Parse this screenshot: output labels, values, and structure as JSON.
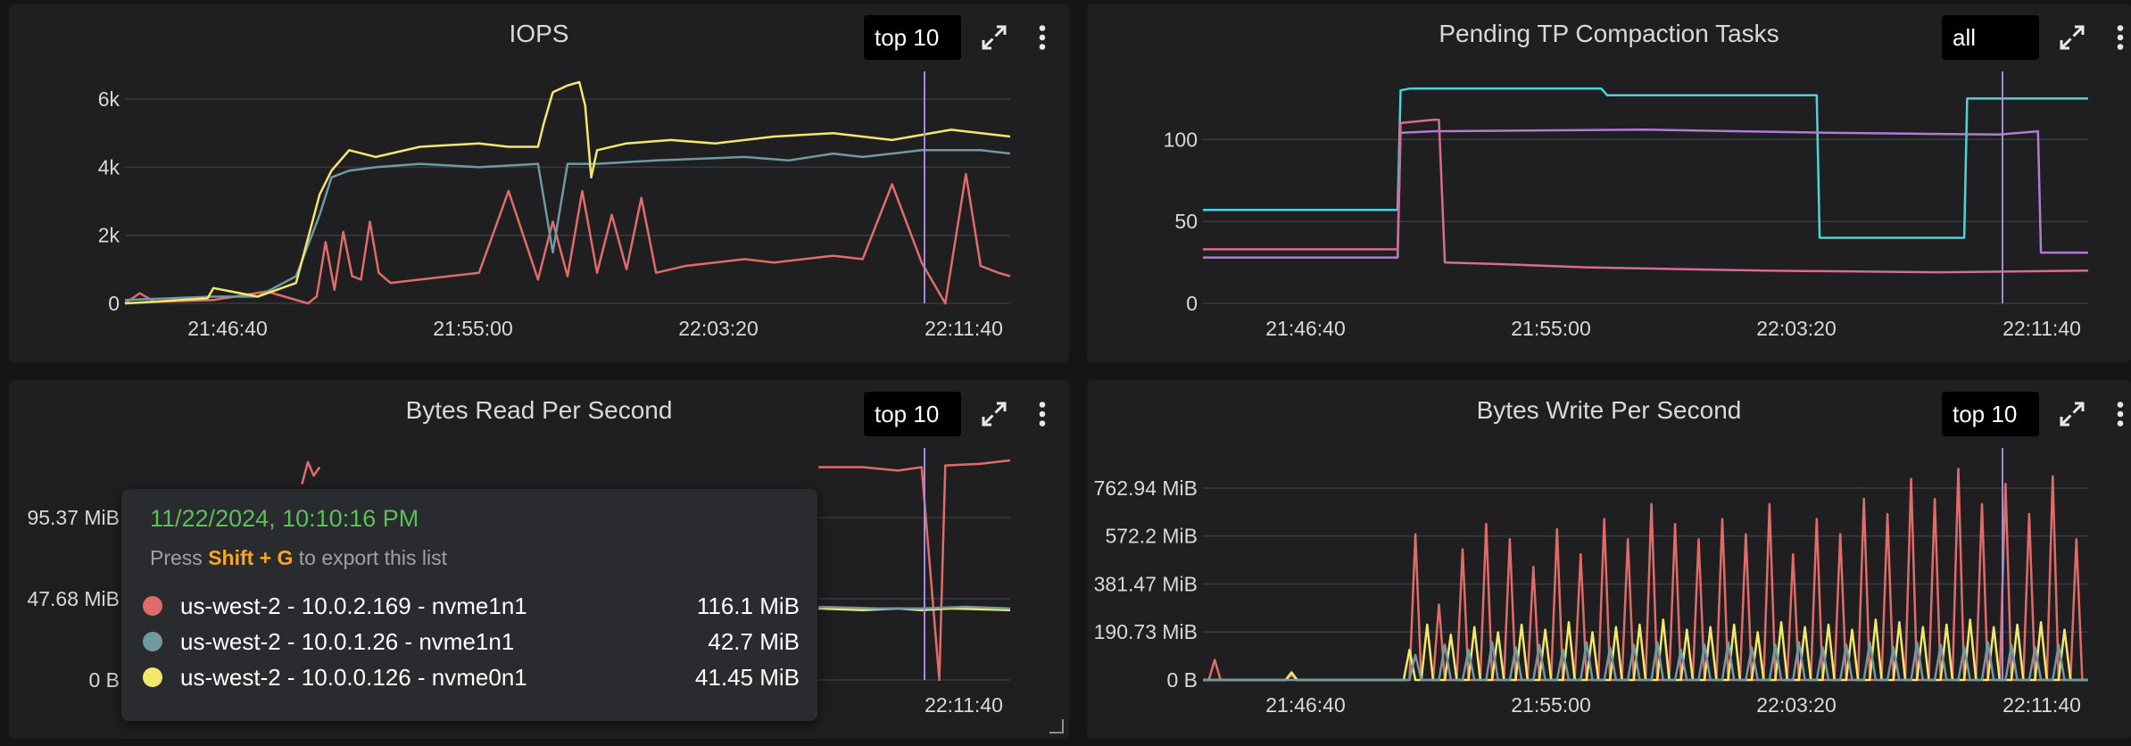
{
  "colors": {
    "red": "#e06c6a",
    "gray": "#6f9aa3",
    "yellow": "#f4e86b",
    "cyan": "#4dd3d8",
    "pink": "#d86b95",
    "purple": "#b27bd6",
    "cursor": "#a58bd6",
    "grid": "#3a3b3e"
  },
  "chart_data": [
    {
      "id": "iops",
      "type": "line",
      "title": "IOPS",
      "top_select": "top 10",
      "x_ticks": [
        "21:46:40",
        "21:55:00",
        "22:03:20",
        "22:11:40"
      ],
      "y_ticks": [
        "0",
        "2k",
        "4k",
        "6k"
      ],
      "ylim": [
        0,
        6500
      ],
      "cursor_time": "22:10:16",
      "series": [
        {
          "color": "red",
          "points": [
            [
              0,
              0
            ],
            [
              5,
              300
            ],
            [
              10,
              50
            ],
            [
              30,
              100
            ],
            [
              48,
              350
            ],
            [
              62,
              0
            ],
            [
              65,
              200
            ],
            [
              68,
              1800
            ],
            [
              71,
              400
            ],
            [
              74,
              2100
            ],
            [
              77,
              800
            ],
            [
              80,
              700
            ],
            [
              83,
              2400
            ],
            [
              86,
              900
            ],
            [
              90,
              600
            ],
            [
              100,
              700
            ],
            [
              110,
              800
            ],
            [
              120,
              900
            ],
            [
              130,
              3300
            ],
            [
              140,
              700
            ],
            [
              145,
              2400
            ],
            [
              150,
              800
            ],
            [
              155,
              3300
            ],
            [
              160,
              900
            ],
            [
              165,
              2600
            ],
            [
              170,
              1000
            ],
            [
              175,
              3100
            ],
            [
              180,
              900
            ],
            [
              190,
              1100
            ],
            [
              200,
              1200
            ],
            [
              210,
              1300
            ],
            [
              220,
              1200
            ],
            [
              230,
              1300
            ],
            [
              240,
              1400
            ],
            [
              250,
              1300
            ],
            [
              260,
              3500
            ],
            [
              270,
              1200
            ],
            [
              278,
              0
            ],
            [
              285,
              3800
            ],
            [
              290,
              1100
            ],
            [
              296,
              900
            ],
            [
              300,
              800
            ]
          ]
        },
        {
          "color": "gray",
          "points": [
            [
              0,
              100
            ],
            [
              30,
              200
            ],
            [
              45,
              200
            ],
            [
              58,
              800
            ],
            [
              66,
              2600
            ],
            [
              70,
              3700
            ],
            [
              76,
              3900
            ],
            [
              85,
              4000
            ],
            [
              100,
              4100
            ],
            [
              120,
              4000
            ],
            [
              140,
              4100
            ],
            [
              145,
              1500
            ],
            [
              150,
              4100
            ],
            [
              160,
              4100
            ],
            [
              180,
              4200
            ],
            [
              210,
              4300
            ],
            [
              225,
              4200
            ],
            [
              240,
              4400
            ],
            [
              250,
              4300
            ],
            [
              270,
              4500
            ],
            [
              290,
              4500
            ],
            [
              300,
              4400
            ]
          ]
        },
        {
          "color": "yellow",
          "points": [
            [
              0,
              0
            ],
            [
              10,
              50
            ],
            [
              28,
              150
            ],
            [
              30,
              450
            ],
            [
              45,
              200
            ],
            [
              58,
              600
            ],
            [
              66,
              3200
            ],
            [
              70,
              3900
            ],
            [
              76,
              4500
            ],
            [
              85,
              4300
            ],
            [
              100,
              4600
            ],
            [
              120,
              4700
            ],
            [
              130,
              4600
            ],
            [
              140,
              4600
            ],
            [
              142,
              5300
            ],
            [
              145,
              6200
            ],
            [
              150,
              6400
            ],
            [
              154,
              6600
            ],
            [
              156,
              5800
            ],
            [
              158,
              3700
            ],
            [
              160,
              4500
            ],
            [
              170,
              4700
            ],
            [
              185,
              4800
            ],
            [
              200,
              4700
            ],
            [
              220,
              4900
            ],
            [
              240,
              5000
            ],
            [
              260,
              4800
            ],
            [
              280,
              5100
            ],
            [
              300,
              4900
            ]
          ]
        }
      ]
    },
    {
      "id": "pending_tp",
      "type": "line",
      "title": "Pending TP Compaction Tasks",
      "top_select": "all",
      "x_ticks": [
        "21:46:40",
        "21:55:00",
        "22:03:20",
        "22:11:40"
      ],
      "y_ticks": [
        "0",
        "50",
        "100"
      ],
      "ylim": [
        0,
        135
      ],
      "cursor_time": "22:10:16",
      "series": [
        {
          "color": "cyan",
          "points": [
            [
              0,
              57
            ],
            [
              66,
              57
            ],
            [
              67,
              130
            ],
            [
              70,
              131
            ],
            [
              135,
              131
            ],
            [
              137,
              127
            ],
            [
              208,
              127
            ],
            [
              209,
              40
            ],
            [
              258,
              40
            ],
            [
              259,
              125
            ],
            [
              300,
              125
            ]
          ]
        },
        {
          "color": "purple",
          "points": [
            [
              0,
              28
            ],
            [
              66,
              28
            ],
            [
              67,
              104
            ],
            [
              78,
              105
            ],
            [
              150,
              106
            ],
            [
              215,
              104
            ],
            [
              270,
              103
            ],
            [
              283,
              105
            ],
            [
              284,
              31
            ],
            [
              300,
              31
            ]
          ]
        },
        {
          "color": "pink",
          "points": [
            [
              0,
              33
            ],
            [
              66,
              33
            ],
            [
              67,
              110
            ],
            [
              78,
              112
            ],
            [
              80,
              112
            ],
            [
              82,
              25
            ],
            [
              100,
              24
            ],
            [
              130,
              22
            ],
            [
              190,
              20
            ],
            [
              250,
              19
            ],
            [
              300,
              20
            ]
          ]
        }
      ]
    },
    {
      "id": "bytes_read",
      "type": "line",
      "title": "Bytes Read Per Second",
      "top_select": "top 10",
      "x_ticks": [
        "22:11:40"
      ],
      "y_ticks": [
        "0 B",
        "47.68 MiB",
        "95.37 MiB"
      ],
      "ylim": [
        0,
        130
      ],
      "cursor_time": "22:10:16",
      "series": [
        {
          "color": "red",
          "points": [
            [
              235,
              125
            ],
            [
              250,
              125
            ],
            [
              262,
              123
            ],
            [
              270,
              125
            ],
            [
              276,
              0
            ],
            [
              278,
              126
            ],
            [
              290,
              127
            ],
            [
              300,
              129
            ]
          ]
        },
        {
          "color": "yellow",
          "points": [
            [
              235,
              42
            ],
            [
              250,
              41
            ],
            [
              262,
              42
            ],
            [
              270,
              41
            ],
            [
              280,
              42
            ],
            [
              300,
              41
            ]
          ]
        },
        {
          "color": "gray",
          "points": [
            [
              235,
              43
            ],
            [
              255,
              42
            ],
            [
              270,
              42
            ],
            [
              285,
              43
            ],
            [
              300,
              42
            ]
          ]
        },
        {
          "color": "red",
          "points": [
            [
              60,
              115
            ],
            [
              62,
              128
            ],
            [
              64,
              120
            ],
            [
              66,
              125
            ]
          ]
        }
      ]
    },
    {
      "id": "bytes_write",
      "type": "line",
      "title": "Bytes Write Per Second",
      "top_select": "top 10",
      "x_ticks": [
        "21:46:40",
        "21:55:00",
        "22:03:20",
        "22:11:40"
      ],
      "y_ticks": [
        "0 B",
        "190.73 MiB",
        "381.47 MiB",
        "572.2 MiB",
        "762.94 MiB"
      ],
      "ylim": [
        0,
        880
      ],
      "cursor_time": "22:10:16",
      "series": [
        {
          "color": "red",
          "spiky": true,
          "base": 0,
          "peaks": [
            [
              4,
              80
            ],
            [
              30,
              20
            ],
            [
              72,
              580
            ],
            [
              80,
              300
            ],
            [
              88,
              520
            ],
            [
              96,
              620
            ],
            [
              104,
              560
            ],
            [
              112,
              450
            ],
            [
              120,
              600
            ],
            [
              128,
              500
            ],
            [
              136,
              640
            ],
            [
              144,
              560
            ],
            [
              152,
              700
            ],
            [
              160,
              620
            ],
            [
              168,
              560
            ],
            [
              176,
              640
            ],
            [
              184,
              580
            ],
            [
              192,
              700
            ],
            [
              200,
              500
            ],
            [
              208,
              640
            ],
            [
              216,
              580
            ],
            [
              224,
              720
            ],
            [
              232,
              660
            ],
            [
              240,
              800
            ],
            [
              248,
              720
            ],
            [
              256,
              840
            ],
            [
              264,
              700
            ],
            [
              272,
              780
            ],
            [
              280,
              660
            ],
            [
              288,
              810
            ],
            [
              296,
              560
            ]
          ]
        },
        {
          "color": "yellow",
          "spiky": true,
          "base": 0,
          "peaks": [
            [
              30,
              30
            ],
            [
              70,
              120
            ],
            [
              76,
              220
            ],
            [
              84,
              180
            ],
            [
              92,
              210
            ],
            [
              100,
              190
            ],
            [
              108,
              220
            ],
            [
              116,
              200
            ],
            [
              124,
              230
            ],
            [
              132,
              190
            ],
            [
              140,
              210
            ],
            [
              148,
              220
            ],
            [
              156,
              240
            ],
            [
              164,
              200
            ],
            [
              172,
              210
            ],
            [
              180,
              220
            ],
            [
              188,
              190
            ],
            [
              196,
              230
            ],
            [
              204,
              210
            ],
            [
              212,
              220
            ],
            [
              220,
              200
            ],
            [
              228,
              240
            ],
            [
              236,
              230
            ],
            [
              244,
              210
            ],
            [
              252,
              220
            ],
            [
              260,
              240
            ],
            [
              268,
              210
            ],
            [
              276,
              220
            ],
            [
              284,
              230
            ],
            [
              292,
              200
            ]
          ]
        },
        {
          "color": "gray",
          "spiky": true,
          "base": 0,
          "peaks": [
            [
              72,
              100
            ],
            [
              82,
              140
            ],
            [
              90,
              120
            ],
            [
              98,
              150
            ],
            [
              106,
              130
            ],
            [
              114,
              140
            ],
            [
              122,
              120
            ],
            [
              130,
              150
            ],
            [
              138,
              130
            ],
            [
              146,
              140
            ],
            [
              154,
              150
            ],
            [
              162,
              120
            ],
            [
              170,
              140
            ],
            [
              178,
              150
            ],
            [
              186,
              130
            ],
            [
              194,
              140
            ],
            [
              202,
              150
            ],
            [
              210,
              130
            ],
            [
              218,
              140
            ],
            [
              226,
              150
            ],
            [
              234,
              130
            ],
            [
              242,
              150
            ],
            [
              250,
              140
            ],
            [
              258,
              130
            ],
            [
              266,
              150
            ],
            [
              274,
              140
            ],
            [
              282,
              130
            ],
            [
              290,
              140
            ]
          ]
        }
      ]
    }
  ],
  "tooltip": {
    "date": "11/22/2024, 10:10:16 PM",
    "hint_prefix": "Press ",
    "hint_key": "Shift + G",
    "hint_suffix": " to export this list",
    "rows": [
      {
        "color": "red",
        "label": "us-west-2 - 10.0.2.169 - nvme1n1",
        "value": "116.1 MiB"
      },
      {
        "color": "gray",
        "label": "us-west-2 - 10.0.1.26 - nvme1n1",
        "value": "42.7 MiB"
      },
      {
        "color": "yellow",
        "label": "us-west-2 - 10.0.0.126 - nvme0n1",
        "value": "41.45 MiB"
      }
    ]
  }
}
